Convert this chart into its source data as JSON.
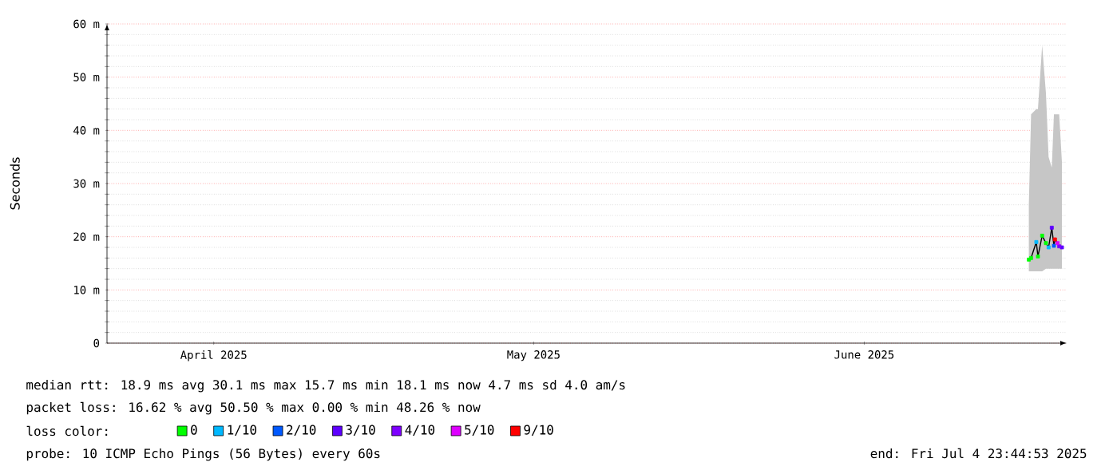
{
  "chart_data": {
    "type": "scatter",
    "ylabel": "Seconds",
    "xlim": [
      "2025-04-05T23:44",
      "2025-07-04T23:44"
    ],
    "xticks": [
      {
        "value": "2025-04-16",
        "label": "April 2025"
      },
      {
        "value": "2025-05-16",
        "label": "May 2025"
      },
      {
        "value": "2025-06-16",
        "label": "June 2025"
      }
    ],
    "ylim": [
      0,
      60
    ],
    "yticks": [
      0,
      {
        "value": 10,
        "label": "10 m"
      },
      {
        "value": 20,
        "label": "20 m"
      },
      {
        "value": 30,
        "label": "30 m"
      },
      {
        "value": 40,
        "label": "40 m"
      },
      {
        "value": 50,
        "label": "50 m"
      },
      {
        "value": 60,
        "label": "60 m"
      }
    ],
    "grid": true,
    "legend": "bottom",
    "legend_title": "loss color:",
    "marker": "square",
    "series": [
      {
        "type": "line",
        "marker": "none",
        "color": "#000000",
        "x": [
          "2025-07-01T10:30",
          "2025-07-01T15:35",
          "2025-07-02T03:20",
          "2025-07-02T07:00",
          "2025-07-02T16:30",
          "2025-07-03T01:00",
          "2025-07-03T07:00",
          "2025-07-03T14:10",
          "2025-07-03T19:00",
          "2025-07-03T21:20",
          "2025-07-04T03:00",
          "2025-07-04T06:50",
          "2025-07-04T13:00"
        ],
        "values": [
          15.7,
          16.0,
          19.0,
          16.3,
          20.2,
          18.8,
          18.0,
          21.7,
          18.3,
          19.5,
          18.8,
          18.2,
          18.0
        ],
        "lower": [
          13.5,
          13.5,
          13.5,
          13.5,
          13.5,
          14,
          14,
          14,
          14,
          14,
          14,
          14,
          14
        ],
        "upper": [
          26,
          43,
          44,
          44,
          56,
          47,
          35,
          33,
          43,
          43,
          43,
          43,
          34
        ]
      },
      {
        "name": "0",
        "color": "#00ff00",
        "x": [
          "2025-07-01T10:30",
          "2025-07-01T15:35",
          "2025-07-02T07:00",
          "2025-07-02T16:30",
          "2025-07-03T01:00"
        ],
        "values": [
          15.7,
          16.0,
          16.3,
          20.2,
          18.8
        ]
      },
      {
        "name": "1/10",
        "color": "#00b8ff",
        "x": [
          "2025-07-02T03:20",
          "2025-07-03T07:00"
        ],
        "values": [
          19.0,
          18.0
        ]
      },
      {
        "name": "2/10",
        "color": "#0059ff",
        "x": [
          "2025-07-03T19:00"
        ],
        "values": [
          18.3
        ]
      },
      {
        "name": "3/10",
        "color": "#5e00ff",
        "x": [
          "2025-07-03T14:10",
          "2025-07-04T13:00"
        ],
        "values": [
          21.7,
          18.0
        ]
      },
      {
        "name": "4/10",
        "color": "#7e00ff",
        "x": [
          "2025-07-04T06:50"
        ],
        "values": [
          18.2
        ]
      },
      {
        "name": "5/10",
        "color": "#dd00ff",
        "x": [
          "2025-07-04T03:00"
        ],
        "values": [
          18.8
        ]
      },
      {
        "name": "9/10",
        "color": "#ff0000",
        "x": [
          "2025-07-03T21:20"
        ],
        "values": [
          19.5
        ]
      }
    ],
    "annotations": [
      "median rtt: 18.9 ms avg 30.1 ms max 15.7 ms min 18.1 ms now 4.7 ms sd 4.0 am/s",
      "packet loss: 16.62 % avg 50.50 % max 0.00 % min 48.26 % now",
      "probe: 10 ICMP Echo Pings (56 Bytes) every 60s",
      "end: Fri Jul 4 23:44:53 2025"
    ]
  }
}
